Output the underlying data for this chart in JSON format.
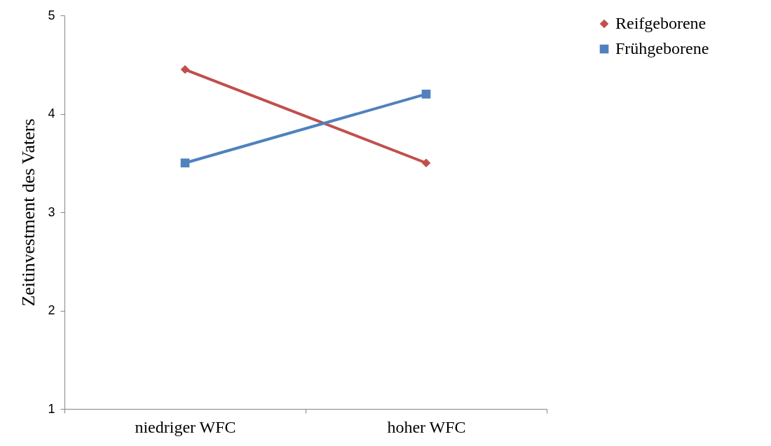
{
  "chart_data": {
    "type": "line",
    "ylabel": "Zeitinvestment des Vaters",
    "categories": [
      "niedriger WFC",
      "hoher WFC"
    ],
    "series": [
      {
        "name": "Reifgeborene",
        "color": "#c0504d",
        "marker": "diamond",
        "values": [
          4.45,
          3.5
        ]
      },
      {
        "name": "Frühgeborene",
        "color": "#4f81bd",
        "marker": "square",
        "values": [
          3.5,
          4.2
        ]
      }
    ],
    "ylim": [
      1,
      5
    ],
    "yticks": [
      1,
      2,
      3,
      4,
      5
    ],
    "grid": false,
    "legend": "right"
  }
}
